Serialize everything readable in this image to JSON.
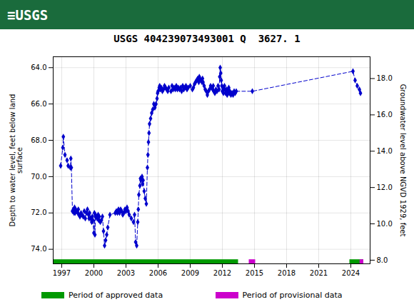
{
  "chart_data": {
    "type": "line",
    "title": "USGS 404239073493001 Q  3627. 1",
    "annotations": [
      {
        "text": "≡USGS",
        "color": "#1a6b3c"
      }
    ],
    "ylabel": "Depth to water level, feet below land\nsurface",
    "y2label": "Groundwater level above NGVD 1929, feet",
    "color": "#0000cc",
    "marker": "diamond",
    "line_style": "dashed",
    "grid": true,
    "legend": "bottom",
    "xlim": [
      1996.2,
      2025.8
    ],
    "xticks": [
      1997,
      2000,
      2003,
      2006,
      2009,
      2012,
      2015,
      2018,
      2021,
      2024
    ],
    "ylim": [
      74.8,
      63.4
    ],
    "yticks": [
      {
        "value": 64.0,
        "label": "64.0"
      },
      {
        "value": 66.0,
        "label": "66.0"
      },
      {
        "value": 68.0,
        "label": "68.0"
      },
      {
        "value": 70.0,
        "label": "70.0"
      },
      {
        "value": 72.0,
        "label": "72.0"
      },
      {
        "value": 74.0,
        "label": "74.0"
      }
    ],
    "y2lim": [
      7.8,
      19.2
    ],
    "y2ticks": [
      {
        "value": 8.0,
        "label": "8.0"
      },
      {
        "value": 10.0,
        "label": "10.0"
      },
      {
        "value": 12.0,
        "label": "12.0"
      },
      {
        "value": 14.0,
        "label": "14.0"
      },
      {
        "value": 16.0,
        "label": "16.0"
      },
      {
        "value": 18.0,
        "label": "18.0"
      }
    ],
    "x": [
      1996.9,
      1997.1,
      1997.15,
      1997.3,
      1997.5,
      1997.6,
      1997.8,
      1997.85,
      1997.9,
      1998.0,
      1998.1,
      1998.15,
      1998.2,
      1998.25,
      1998.3,
      1998.4,
      1998.5,
      1998.55,
      1998.6,
      1998.7,
      1998.8,
      1998.9,
      1999.0,
      1999.1,
      1999.2,
      1999.3,
      1999.4,
      1999.5,
      1999.55,
      1999.6,
      1999.7,
      1999.8,
      1999.85,
      1999.9,
      2000.0,
      2000.05,
      2000.1,
      2000.15,
      2000.2,
      2000.3,
      2000.4,
      2000.45,
      2000.5,
      2000.6,
      2000.7,
      2000.8,
      2000.9,
      2001.0,
      2001.1,
      2001.2,
      2001.3,
      2001.5,
      2002.0,
      2002.1,
      2002.2,
      2002.3,
      2002.4,
      2002.5,
      2002.6,
      2002.7,
      2002.8,
      2002.9,
      2003.0,
      2003.1,
      2003.2,
      2003.3,
      2003.5,
      2003.7,
      2003.8,
      2003.9,
      2004.0,
      2004.1,
      2004.15,
      2004.2,
      2004.3,
      2004.35,
      2004.4,
      2004.5,
      2004.55,
      2004.6,
      2004.7,
      2004.8,
      2004.9,
      2005.0,
      2005.05,
      2005.1,
      2005.15,
      2005.2,
      2005.3,
      2005.4,
      2005.5,
      2005.6,
      2005.7,
      2005.8,
      2005.9,
      2005.95,
      2006.0,
      2006.1,
      2006.15,
      2006.2,
      2006.3,
      2006.4,
      2006.5,
      2006.6,
      2006.7,
      2006.8,
      2006.9,
      2007.0,
      2007.2,
      2007.3,
      2007.4,
      2007.5,
      2007.6,
      2007.7,
      2007.8,
      2007.9,
      2008.0,
      2008.1,
      2008.2,
      2008.3,
      2008.4,
      2008.5,
      2008.6,
      2008.7,
      2008.8,
      2009.0,
      2009.2,
      2009.3,
      2009.4,
      2009.5,
      2009.6,
      2009.7,
      2009.8,
      2009.85,
      2009.9,
      2010.0,
      2010.1,
      2010.15,
      2010.2,
      2010.3,
      2010.4,
      2010.5,
      2010.6,
      2010.7,
      2010.8,
      2010.9,
      2011.0,
      2011.1,
      2011.15,
      2011.2,
      2011.3,
      2011.4,
      2011.5,
      2011.6,
      2011.7,
      2011.75,
      2011.8,
      2011.85,
      2011.9,
      2011.95,
      2012.0,
      2012.05,
      2012.1,
      2012.15,
      2012.2,
      2012.25,
      2012.3,
      2012.4,
      2012.45,
      2012.5,
      2012.6,
      2012.65,
      2012.7,
      2012.8,
      2012.9,
      2013.0,
      2013.1,
      2013.2,
      2013.3,
      2014.8,
      2024.2,
      2024.4,
      2024.6,
      2024.8,
      2024.9
    ],
    "values": [
      69.4,
      68.4,
      67.8,
      68.8,
      69.1,
      69.4,
      69.5,
      69.0,
      69.5,
      71.9,
      71.8,
      72.0,
      71.7,
      72.0,
      71.8,
      71.9,
      72.0,
      71.8,
      72.1,
      72.2,
      72.0,
      72.1,
      72.2,
      71.9,
      72.3,
      72.0,
      71.8,
      72.1,
      72.3,
      72.0,
      72.3,
      72.5,
      72.2,
      72.4,
      73.1,
      72.0,
      73.2,
      72.1,
      72.2,
      72.3,
      72.1,
      72.4,
      72.2,
      72.5,
      72.4,
      72.2,
      73.0,
      73.8,
      73.5,
      73.2,
      72.8,
      72.1,
      72.0,
      71.9,
      72.0,
      71.8,
      72.0,
      71.8,
      71.9,
      72.1,
      72.0,
      71.8,
      71.9,
      71.7,
      71.9,
      72.1,
      72.3,
      72.5,
      72.1,
      73.6,
      73.8,
      72.5,
      71.8,
      71.0,
      70.5,
      70.1,
      70.2,
      70.0,
      70.4,
      70.2,
      70.8,
      71.2,
      71.5,
      69.5,
      68.8,
      68.1,
      67.6,
      67.1,
      66.8,
      66.5,
      66.3,
      66.0,
      66.2,
      66.0,
      65.7,
      65.4,
      65.3,
      65.1,
      65.0,
      65.2,
      65.1,
      65.3,
      65.2,
      65.0,
      65.1,
      65.2,
      65.3,
      65.1,
      65.3,
      65.0,
      65.2,
      65.1,
      65.2,
      65.0,
      65.2,
      65.1,
      65.2,
      65.1,
      65.3,
      65.0,
      65.2,
      65.1,
      65.0,
      65.2,
      65.1,
      65.0,
      65.2,
      65.1,
      64.9,
      64.8,
      64.7,
      64.6,
      64.8,
      64.5,
      64.6,
      64.7,
      64.8,
      64.6,
      64.8,
      65.0,
      65.2,
      65.3,
      65.5,
      65.3,
      65.2,
      65.0,
      65.1,
      65.2,
      65.0,
      65.3,
      65.4,
      65.2,
      65.3,
      65.0,
      65.2,
      64.5,
      64.0,
      64.3,
      64.7,
      65.0,
      65.3,
      65.1,
      65.4,
      65.2,
      65.0,
      65.2,
      65.4,
      65.2,
      65.5,
      65.3,
      65.1,
      65.4,
      65.3,
      65.5,
      65.4,
      65.5,
      65.3,
      65.4,
      65.3,
      65.3,
      64.2,
      64.7,
      65.0,
      65.2,
      65.4
    ],
    "periods": [
      {
        "name": "Period of approved data",
        "color": "#009900",
        "ranges": [
          [
            1996.2,
            2013.5
          ],
          [
            2023.9,
            2025.2
          ]
        ]
      },
      {
        "name": "Period of provisional data",
        "color": "#cc00cc",
        "ranges": [
          [
            2014.5,
            2015.1
          ],
          [
            2024.85,
            2025.2
          ]
        ]
      }
    ]
  }
}
